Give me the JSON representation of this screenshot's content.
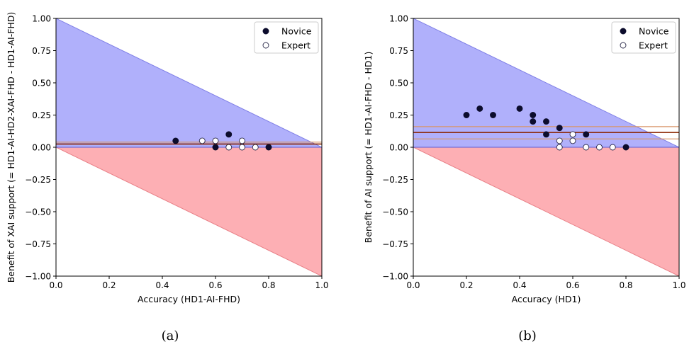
{
  "chart_data": [
    {
      "type": "scatter",
      "panel_caption": "(a)",
      "xlabel": "Accuracy (HD1-AI-FHD)",
      "ylabel": "Benefit of XAI support (= HD1-AI-HD2-XAI-FHD - HD1-AI-FHD)",
      "xlim": [
        0.0,
        1.0
      ],
      "ylim": [
        -1.0,
        1.0
      ],
      "xticks": [
        "0.0",
        "0.2",
        "0.4",
        "0.6",
        "0.8",
        "1.0"
      ],
      "yticks": [
        "1.00",
        "0.75",
        "0.50",
        "0.25",
        "0.00",
        "−0.25",
        "−0.50",
        "−0.75",
        "−1.00"
      ],
      "grid": false,
      "legend_position": "top-right",
      "regions": [
        {
          "color": "#b0b0fb",
          "edge": "#7f7fe6",
          "polygon": [
            [
              0,
              0
            ],
            [
              0,
              1
            ],
            [
              1,
              0
            ]
          ]
        },
        {
          "color": "#fdafb4",
          "edge": "#e87f86",
          "polygon": [
            [
              0,
              0
            ],
            [
              1,
              0
            ],
            [
              1,
              -1
            ]
          ]
        }
      ],
      "hlines": [
        {
          "y": 0.0,
          "color": "#5c5cd6",
          "width": 1.0
        },
        {
          "y": 0.025,
          "color": "#8b2500",
          "width": 1.6
        },
        {
          "y": 0.04,
          "color": "#d8966a",
          "width": 1.2
        }
      ],
      "series": [
        {
          "name": "Novice",
          "marker": "filled",
          "points": [
            [
              0.45,
              0.05
            ],
            [
              0.6,
              0.0
            ],
            [
              0.65,
              0.1
            ],
            [
              0.8,
              0.0
            ]
          ]
        },
        {
          "name": "Expert",
          "marker": "open",
          "points": [
            [
              0.55,
              0.05
            ],
            [
              0.6,
              0.05
            ],
            [
              0.65,
              0.0
            ],
            [
              0.7,
              0.05
            ],
            [
              0.7,
              0.0
            ],
            [
              0.75,
              0.0
            ]
          ]
        }
      ]
    },
    {
      "type": "scatter",
      "panel_caption": "(b)",
      "xlabel": "Accuracy (HD1)",
      "ylabel": "Benefit of AI support (= HD1-AI-FHD - HD1)",
      "xlim": [
        0.0,
        1.0
      ],
      "ylim": [
        -1.0,
        1.0
      ],
      "xticks": [
        "0.0",
        "0.2",
        "0.4",
        "0.6",
        "0.8",
        "1.0"
      ],
      "yticks": [
        "1.00",
        "0.75",
        "0.50",
        "0.25",
        "0.00",
        "−0.25",
        "−0.50",
        "−0.75",
        "−1.00"
      ],
      "grid": false,
      "legend_position": "top-right",
      "regions": [
        {
          "color": "#b0b0fb",
          "edge": "#7f7fe6",
          "polygon": [
            [
              0,
              0
            ],
            [
              0,
              1
            ],
            [
              1,
              0
            ]
          ]
        },
        {
          "color": "#fdafb4",
          "edge": "#e87f86",
          "polygon": [
            [
              0,
              0
            ],
            [
              1,
              0
            ],
            [
              1,
              -1
            ]
          ]
        }
      ],
      "hlines": [
        {
          "y": 0.0,
          "color": "#5c5cd6",
          "width": 1.0
        },
        {
          "y": 0.065,
          "color": "#d8966a",
          "width": 1.2
        },
        {
          "y": 0.115,
          "color": "#8b2500",
          "width": 1.6
        },
        {
          "y": 0.16,
          "color": "#d8966a",
          "width": 1.2
        }
      ],
      "series": [
        {
          "name": "Novice",
          "marker": "filled",
          "points": [
            [
              0.2,
              0.25
            ],
            [
              0.25,
              0.3
            ],
            [
              0.3,
              0.25
            ],
            [
              0.4,
              0.3
            ],
            [
              0.45,
              0.25
            ],
            [
              0.45,
              0.2
            ],
            [
              0.5,
              0.2
            ],
            [
              0.5,
              0.1
            ],
            [
              0.55,
              0.15
            ],
            [
              0.65,
              0.1
            ],
            [
              0.8,
              0.0
            ]
          ]
        },
        {
          "name": "Expert",
          "marker": "open",
          "points": [
            [
              0.55,
              0.05
            ],
            [
              0.55,
              0.0
            ],
            [
              0.6,
              0.1
            ],
            [
              0.6,
              0.05
            ],
            [
              0.65,
              0.0
            ],
            [
              0.7,
              0.0
            ],
            [
              0.75,
              0.0
            ]
          ]
        }
      ]
    }
  ]
}
